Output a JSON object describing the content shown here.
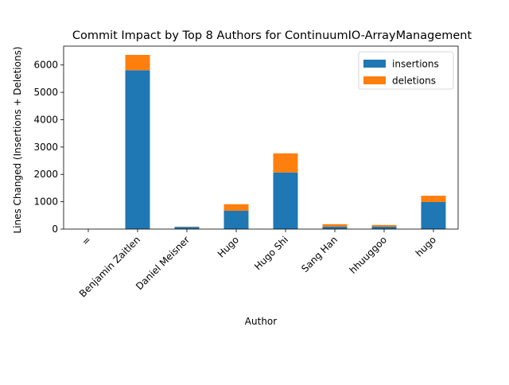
{
  "chart_data": {
    "type": "bar",
    "stacked": true,
    "title": "Commit Impact by Top 8 Authors for ContinuumIO-ArrayManagement",
    "xlabel": "Author",
    "ylabel": "Lines Changed (Insertions + Deletions)",
    "categories": [
      "=",
      "Benjamin Zaitlen",
      "Daniel Meisner",
      "Hugo",
      "Hugo Shi",
      "Sang Han",
      "hhuuggoo",
      "hugo"
    ],
    "series": [
      {
        "name": "insertions",
        "color": "#1f77b4",
        "values": [
          0,
          5810,
          80,
          670,
          2070,
          90,
          90,
          990
        ]
      },
      {
        "name": "deletions",
        "color": "#ff7f0e",
        "values": [
          0,
          560,
          10,
          240,
          700,
          90,
          60,
          230
        ]
      }
    ],
    "ylim": [
      0,
      6690
    ],
    "yticks": [
      0,
      1000,
      2000,
      3000,
      4000,
      5000,
      6000
    ],
    "ytick_labels": [
      "0",
      "1000",
      "2000",
      "3000",
      "4000",
      "5000",
      "6000"
    ],
    "grid": false,
    "legend_position": "top-right"
  }
}
